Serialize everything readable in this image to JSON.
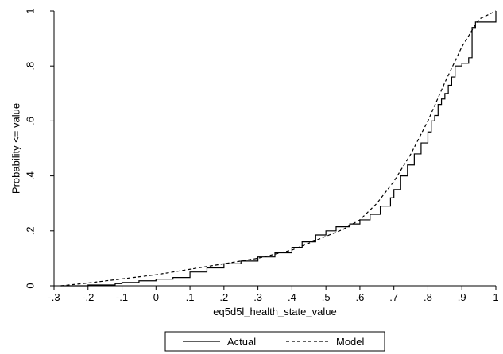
{
  "chart_data": {
    "type": "line",
    "xlabel": "eq5d5l_health_state_value",
    "ylabel": "Probability <= value",
    "xlim": [
      -0.3,
      1.0
    ],
    "ylim": [
      0,
      1
    ],
    "x_ticks": [
      -0.3,
      -0.2,
      -0.1,
      0,
      0.1,
      0.2,
      0.3,
      0.4,
      0.5,
      0.6,
      0.7,
      0.8,
      0.9,
      1
    ],
    "x_tick_labels": [
      "-.3",
      "-.2",
      "-.1",
      "0",
      ".1",
      ".2",
      ".3",
      ".4",
      ".5",
      ".6",
      ".7",
      ".8",
      ".9",
      "1"
    ],
    "y_ticks": [
      0,
      0.2,
      0.4,
      0.6,
      0.8,
      1
    ],
    "y_tick_labels": [
      "0",
      ".2",
      ".4",
      ".6",
      ".8",
      "1"
    ],
    "grid": false,
    "legend_position": "bottom",
    "series": [
      {
        "name": "Actual",
        "style": "solid",
        "color": "#000000",
        "step": true,
        "x": [
          -0.28,
          -0.2,
          -0.12,
          -0.1,
          -0.05,
          0.0,
          0.05,
          0.1,
          0.15,
          0.2,
          0.25,
          0.3,
          0.35,
          0.4,
          0.43,
          0.47,
          0.5,
          0.53,
          0.57,
          0.6,
          0.63,
          0.66,
          0.69,
          0.7,
          0.72,
          0.74,
          0.76,
          0.78,
          0.8,
          0.81,
          0.82,
          0.83,
          0.84,
          0.85,
          0.86,
          0.87,
          0.88,
          0.9,
          0.92,
          0.93,
          0.94,
          0.97,
          0.98,
          1.0
        ],
        "y": [
          0.0,
          0.003,
          0.008,
          0.012,
          0.018,
          0.024,
          0.03,
          0.05,
          0.065,
          0.08,
          0.09,
          0.105,
          0.12,
          0.14,
          0.16,
          0.185,
          0.2,
          0.215,
          0.225,
          0.24,
          0.26,
          0.29,
          0.32,
          0.35,
          0.4,
          0.44,
          0.48,
          0.52,
          0.56,
          0.6,
          0.62,
          0.66,
          0.68,
          0.7,
          0.73,
          0.76,
          0.8,
          0.81,
          0.83,
          0.94,
          0.96,
          0.96,
          0.96,
          1.0
        ]
      },
      {
        "name": "Model",
        "style": "dashed",
        "color": "#000000",
        "step": false,
        "x": [
          -0.28,
          -0.2,
          -0.1,
          0.0,
          0.1,
          0.2,
          0.3,
          0.4,
          0.5,
          0.55,
          0.6,
          0.65,
          0.7,
          0.75,
          0.8,
          0.85,
          0.9,
          0.95,
          1.0
        ],
        "y": [
          0.0,
          0.01,
          0.025,
          0.04,
          0.06,
          0.08,
          0.1,
          0.13,
          0.18,
          0.205,
          0.24,
          0.3,
          0.38,
          0.48,
          0.6,
          0.74,
          0.87,
          0.97,
          1.0
        ]
      }
    ]
  }
}
